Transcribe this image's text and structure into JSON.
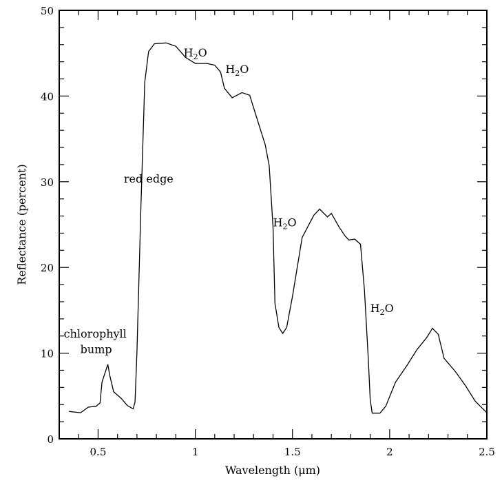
{
  "chart_data": {
    "type": "line",
    "title": "",
    "xlabel": "Wavelength (μm)",
    "ylabel": "Reflectance (percent)",
    "xlim": [
      0.3,
      2.5
    ],
    "ylim": [
      0,
      50
    ],
    "grid": false,
    "x_major_ticks": [
      0.5,
      1,
      1.5,
      2,
      2.5
    ],
    "x_tick_labels": [
      "0.5",
      "1",
      "1.5",
      "2",
      "2.5"
    ],
    "x_minor_step": 0.1,
    "y_major_ticks": [
      0,
      10,
      20,
      30,
      40,
      50
    ],
    "y_tick_labels": [
      "0",
      "10",
      "20",
      "30",
      "40",
      "50"
    ],
    "y_minor_step": 2,
    "line_color": "#000000",
    "series": [
      {
        "x": [
          0.35,
          0.41,
          0.45,
          0.49,
          0.51,
          0.52,
          0.55,
          0.56,
          0.58,
          0.62,
          0.65,
          0.68,
          0.69,
          0.7,
          0.72,
          0.74,
          0.76,
          0.79,
          0.85,
          0.9,
          0.95,
          1.0,
          1.06,
          1.1,
          1.13,
          1.15,
          1.19,
          1.24,
          1.28,
          1.31,
          1.36,
          1.38,
          1.4,
          1.41,
          1.43,
          1.45,
          1.47,
          1.5,
          1.55,
          1.61,
          1.64,
          1.68,
          1.7,
          1.74,
          1.77,
          1.79,
          1.82,
          1.85,
          1.87,
          1.89,
          1.9,
          1.91,
          1.95,
          1.98,
          2.03,
          2.09,
          2.14,
          2.19,
          2.22,
          2.25,
          2.28,
          2.34,
          2.39,
          2.44,
          2.5
        ],
        "y": [
          3.2,
          3.05,
          3.7,
          3.8,
          4.2,
          6.6,
          8.7,
          7.4,
          5.5,
          4.7,
          3.9,
          3.5,
          4.3,
          10.2,
          27,
          41.6,
          45.2,
          46.1,
          46.2,
          45.8,
          44.5,
          43.8,
          43.8,
          43.6,
          42.8,
          40.9,
          39.8,
          40.4,
          40.1,
          37.9,
          34.3,
          31.9,
          24.7,
          15.8,
          13,
          12.3,
          13,
          16.6,
          23.5,
          26.1,
          26.8,
          25.9,
          26.3,
          24.7,
          23.7,
          23.2,
          23.3,
          22.7,
          17.4,
          9.4,
          4.6,
          3.0,
          3.0,
          3.8,
          6.6,
          8.6,
          10.4,
          11.8,
          12.9,
          12.2,
          9.4,
          7.8,
          6.2,
          4.4,
          3.05
        ]
      }
    ],
    "annotations": [
      {
        "text": "chlorophyll",
        "x": 0.485,
        "y": 12.2,
        "anchor": "middle"
      },
      {
        "text": "bump",
        "x": 0.49,
        "y": 10.4,
        "anchor": "middle"
      },
      {
        "text": "red edge",
        "x": 0.76,
        "y": 30.3,
        "anchor": "middle"
      },
      {
        "text": "H",
        "sub": "2",
        "after": "O",
        "x": 0.94,
        "y": 45.0
      },
      {
        "text": "H",
        "sub": "2",
        "after": "O",
        "x": 1.155,
        "y": 43.1
      },
      {
        "text": "H",
        "sub": "2",
        "after": "O",
        "x": 1.4,
        "y": 25.2
      },
      {
        "text": "H",
        "sub": "2",
        "after": "O",
        "x": 1.9,
        "y": 15.2
      }
    ]
  }
}
